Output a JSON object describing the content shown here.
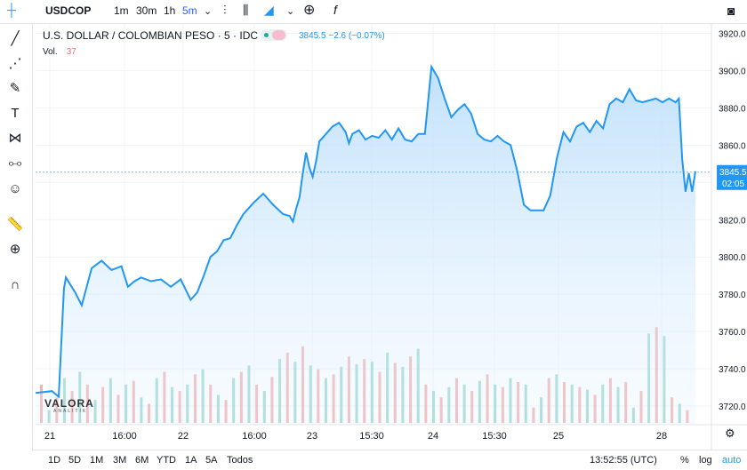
{
  "toolbar": {
    "symbol": "USDCOP",
    "timeframes": [
      "1m",
      "30m",
      "1h",
      "5m"
    ],
    "active_timeframe": "5m"
  },
  "legend": {
    "title": "U.S. DOLLAR / COLOMBIAN PESO · 5 · IDC",
    "price_text": "3845.5  −2.6 (−0.07%)",
    "vol_label": "Vol.",
    "vol_value": "37"
  },
  "price_tag": {
    "price": "3845.5",
    "countdown": "02:05"
  },
  "bottom": {
    "ranges": [
      "1D",
      "5D",
      "1M",
      "3M",
      "6M",
      "YTD",
      "1A",
      "5A",
      "Todos"
    ],
    "clock": "13:52:55 (UTC)",
    "pct": "%",
    "log": "log",
    "auto": "auto"
  },
  "logo": {
    "name": "VALORA",
    "sub": "ANALITIK"
  },
  "colors": {
    "line": "#2196f3",
    "area_top": "#bbdefb",
    "area_bottom": "#f3f9ff",
    "vol_up": "#80cbc4",
    "vol_down": "#ef9a9a",
    "price_tag_bg": "#2196f3"
  },
  "chart_data": {
    "type": "area",
    "title": "U.S. DOLLAR / COLOMBIAN PESO · 5 · IDC",
    "x_tick_labels": [
      "21",
      "16:00",
      "22",
      "16:00",
      "23",
      "15:30",
      "24",
      "15:30",
      "25",
      "28"
    ],
    "y_tick_labels": [
      "3920.0",
      "3900.0",
      "3880.0",
      "3860.0",
      "3840.0",
      "3820.0",
      "3800.0",
      "3780.0",
      "3760.0",
      "3740.0",
      "3720.0"
    ],
    "ylim": [
      3710,
      3925
    ],
    "x_range": [
      0,
      100
    ],
    "series": [
      {
        "x": [
          0,
          2.5,
          3.5,
          4.3,
          4.6,
          6,
          7,
          8.5,
          10,
          11.5,
          13,
          14,
          15,
          16,
          17.5,
          19,
          20.5,
          22,
          23.5,
          24.5,
          25.5,
          26.5,
          27.5,
          28.5,
          29.5,
          30.5,
          31.5,
          33,
          34.5,
          36,
          37.5,
          38.5,
          39,
          39.5,
          40,
          40.5,
          41,
          41.5,
          42,
          42.5,
          43,
          44,
          45,
          46,
          47,
          47.5,
          48,
          49,
          50,
          51,
          52,
          53,
          54,
          55,
          56,
          57,
          58,
          59,
          60,
          61,
          62,
          63,
          64,
          65,
          66,
          67,
          68,
          69,
          70,
          71,
          72,
          73,
          74,
          75,
          76,
          77,
          78,
          79,
          80,
          81,
          82,
          83,
          84,
          85,
          86,
          87,
          88,
          89,
          90,
          91,
          92,
          93,
          94,
          95,
          96,
          97,
          97.5,
          98,
          98.5,
          99,
          99.5,
          100
        ],
        "values": [
          3727,
          3728,
          3725,
          3783,
          3789,
          3781,
          3774,
          3794,
          3798,
          3793,
          3795,
          3784,
          3787,
          3789,
          3787,
          3788,
          3784,
          3788,
          3777,
          3781,
          3790,
          3800,
          3803,
          3809,
          3810,
          3817,
          3823,
          3829,
          3834,
          3828,
          3823,
          3822,
          3819,
          3826,
          3832,
          3845,
          3856,
          3848,
          3843,
          3851,
          3862,
          3866,
          3870,
          3872,
          3867,
          3861,
          3866,
          3868,
          3863,
          3865,
          3864,
          3868,
          3863,
          3869,
          3863,
          3862,
          3866,
          3866,
          3902,
          3896,
          3885,
          3875,
          3879,
          3882,
          3877,
          3866,
          3863,
          3862,
          3865,
          3862,
          3860,
          3846,
          3828,
          3825,
          3825,
          3825,
          3833,
          3853,
          3867,
          3862,
          3870,
          3872,
          3867,
          3873,
          3869,
          3882,
          3885,
          3883,
          3890,
          3884,
          3883,
          3884,
          3885,
          3883,
          3885,
          3883,
          3885,
          3852,
          3835,
          3845,
          3835,
          3846
        ],
        "area": true
      }
    ],
    "volume": {
      "description_hidden": true,
      "values": [
        30,
        10,
        20,
        35,
        25,
        40,
        30,
        18,
        28,
        35,
        22,
        30,
        33,
        20,
        15,
        35,
        40,
        28,
        25,
        30,
        38,
        42,
        30,
        22,
        18,
        35,
        40,
        45,
        30,
        25,
        36,
        50,
        55,
        48,
        60,
        45,
        42,
        35,
        38,
        44,
        52,
        46,
        50,
        48,
        40,
        55,
        47,
        44,
        52,
        58,
        30,
        25,
        20,
        28,
        35,
        30,
        25,
        33,
        38,
        30,
        28,
        35,
        32,
        30,
        12,
        20,
        35,
        38,
        32,
        30,
        28,
        26,
        22,
        30,
        35,
        28,
        32,
        12,
        25,
        70,
        75,
        68,
        20,
        15,
        10
      ],
      "ylim": [
        0,
        80
      ]
    },
    "grid": true,
    "y_axis_side": "right"
  }
}
